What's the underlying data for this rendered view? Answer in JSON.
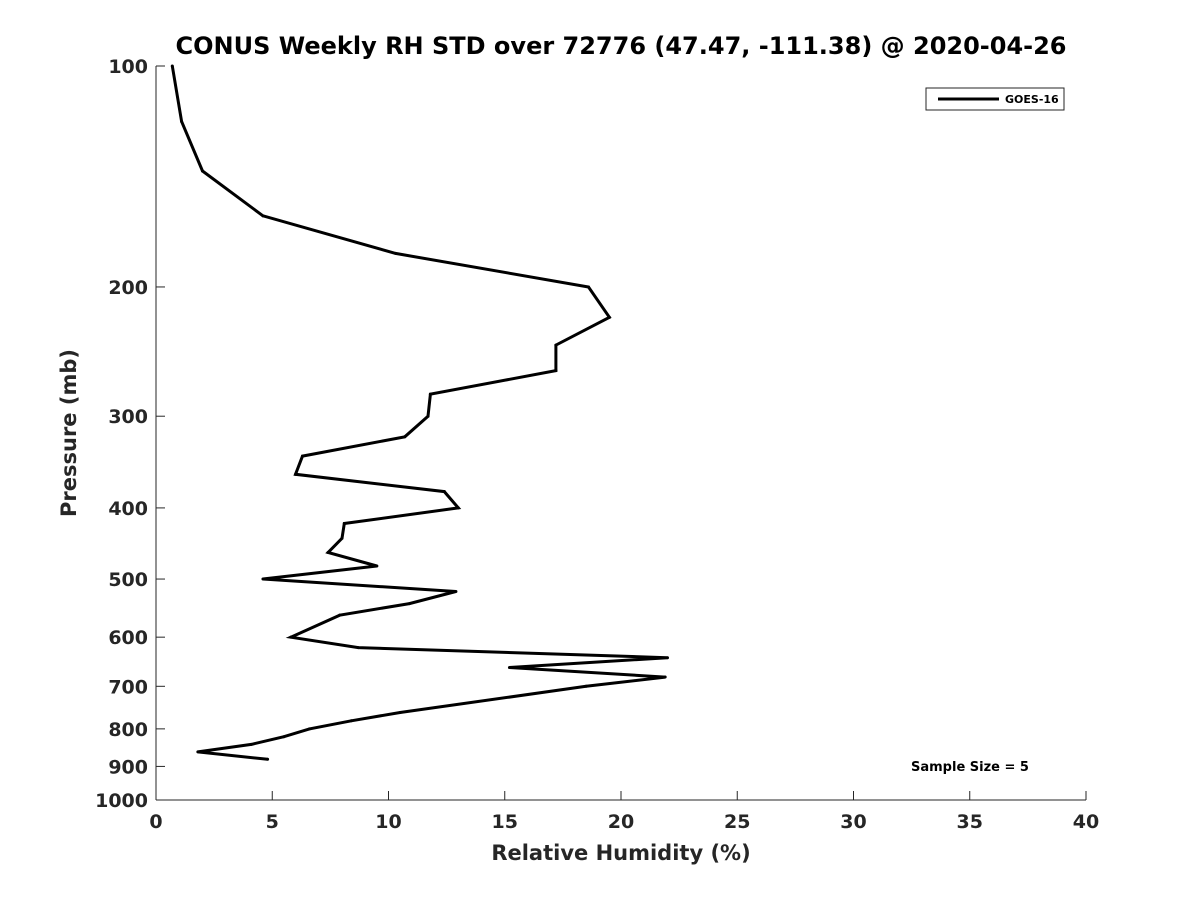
{
  "chart_data": {
    "type": "line",
    "title": "CONUS Weekly RH STD over 72776 (47.47, -111.38) @ 2020-04-26",
    "xlabel": "Relative Humidity (%)",
    "ylabel": "Pressure (mb)",
    "xlim": [
      0,
      40
    ],
    "ylim": [
      100,
      1000
    ],
    "yscale": "log",
    "y_reversed": true,
    "x_ticks": [
      0,
      5,
      10,
      15,
      20,
      25,
      30,
      35,
      40
    ],
    "y_ticks": [
      100,
      200,
      300,
      400,
      500,
      600,
      700,
      800,
      900,
      1000
    ],
    "grid": false,
    "legend_position": "top-right",
    "annotation": "Sample Size = 5",
    "series": [
      {
        "name": "GOES-16",
        "color": "#000000",
        "points": [
          {
            "x": 0.7,
            "p": 100
          },
          {
            "x": 1.1,
            "p": 119
          },
          {
            "x": 2.0,
            "p": 139
          },
          {
            "x": 4.6,
            "p": 160
          },
          {
            "x": 10.3,
            "p": 180
          },
          {
            "x": 18.6,
            "p": 200
          },
          {
            "x": 19.5,
            "p": 220
          },
          {
            "x": 17.2,
            "p": 240
          },
          {
            "x": 17.2,
            "p": 260
          },
          {
            "x": 11.8,
            "p": 280
          },
          {
            "x": 11.7,
            "p": 300
          },
          {
            "x": 10.7,
            "p": 320
          },
          {
            "x": 6.3,
            "p": 340
          },
          {
            "x": 6.0,
            "p": 360
          },
          {
            "x": 12.4,
            "p": 380
          },
          {
            "x": 13.0,
            "p": 400
          },
          {
            "x": 8.1,
            "p": 420
          },
          {
            "x": 8.0,
            "p": 440
          },
          {
            "x": 7.4,
            "p": 460
          },
          {
            "x": 9.5,
            "p": 480
          },
          {
            "x": 4.6,
            "p": 500
          },
          {
            "x": 12.9,
            "p": 520
          },
          {
            "x": 10.9,
            "p": 540
          },
          {
            "x": 7.9,
            "p": 560
          },
          {
            "x": 5.8,
            "p": 600
          },
          {
            "x": 8.7,
            "p": 620
          },
          {
            "x": 22.0,
            "p": 640
          },
          {
            "x": 15.2,
            "p": 660
          },
          {
            "x": 21.9,
            "p": 680
          },
          {
            "x": 18.5,
            "p": 700
          },
          {
            "x": 10.5,
            "p": 760
          },
          {
            "x": 8.4,
            "p": 780
          },
          {
            "x": 6.6,
            "p": 800
          },
          {
            "x": 5.5,
            "p": 820
          },
          {
            "x": 4.1,
            "p": 840
          },
          {
            "x": 1.8,
            "p": 860
          },
          {
            "x": 4.8,
            "p": 880
          }
        ]
      }
    ]
  }
}
